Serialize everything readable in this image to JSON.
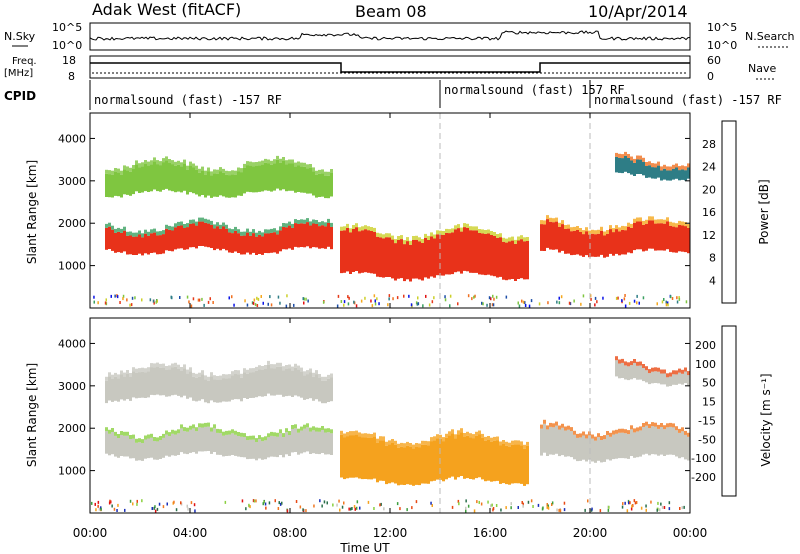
{
  "header": {
    "station": "Adak West (fitACF)",
    "beam": "Beam 08",
    "date": "10/Apr/2014"
  },
  "status_panels": {
    "nsky_label": "N.Sky",
    "nsearch_label": "N.Search",
    "freq_label": "Freq.",
    "freq_unit": "[MHz]",
    "nave_label": "Nave",
    "cpid_label": "CPID",
    "left_ticks_top": [
      "10^5",
      "10^0"
    ],
    "right_ticks_top": [
      "10^5",
      "10^0"
    ],
    "left_ticks_freq": [
      "18",
      "8"
    ],
    "right_ticks_freq": [
      "60",
      "0"
    ]
  },
  "cpid_segments": [
    {
      "label": "normalsound (fast) -157 RF",
      "start_hour": 0
    },
    {
      "label": "normalsound (fast) 157 RF",
      "start_hour": 14
    },
    {
      "label": "normalsound (fast) -157 RF",
      "start_hour": 20
    }
  ],
  "chart_data": [
    {
      "type": "heatmap",
      "panel": "power",
      "ylabel": "Slant Range [km]",
      "xlim_hours": [
        0,
        24
      ],
      "ylim": [
        0,
        4600
      ],
      "yticks": [
        1000,
        2000,
        3000,
        4000
      ],
      "colorbar": {
        "label": "Power [dB]",
        "ticks": [
          "28",
          "24",
          "20",
          "16",
          "12",
          "8",
          "4"
        ],
        "colors": [
          "#0a14e6",
          "#1d4ea8",
          "#2e7d86",
          "#3aa060",
          "#7fc640",
          "#ccd02a",
          "#f5a81e",
          "#f07020",
          "#e63a1a",
          "#e01010"
        ]
      },
      "bands": [
        {
          "t0": 0.6,
          "t1": 9.7,
          "r_lo": 1350,
          "r_hi": 1850,
          "color": "#e8321a",
          "note": "strong echo band"
        },
        {
          "t0": 0.6,
          "t1": 9.7,
          "r_lo": 2700,
          "r_hi": 3300,
          "color": "#7fc640"
        },
        {
          "t0": 10.0,
          "t1": 17.5,
          "r_lo": 750,
          "r_hi": 1700,
          "color": "#e8321a"
        },
        {
          "t0": 18.0,
          "t1": 23.9,
          "r_lo": 1300,
          "r_hi": 1900,
          "color": "#e8321a"
        },
        {
          "t0": 21.0,
          "t1": 23.9,
          "r_lo": 3100,
          "r_hi": 3400,
          "color": "#2e7d86"
        }
      ]
    },
    {
      "type": "heatmap",
      "panel": "velocity",
      "ylabel": "Slant Range [km]",
      "xlabel": "Time UT",
      "xlim_hours": [
        0,
        24
      ],
      "xticks": [
        "00:00",
        "04:00",
        "08:00",
        "12:00",
        "16:00",
        "20:00",
        "00:00"
      ],
      "ylim": [
        0,
        4600
      ],
      "yticks": [
        1000,
        2000,
        3000,
        4000
      ],
      "colorbar": {
        "label": "Velocity [m s⁻¹]",
        "ticks": [
          "200",
          "100",
          "50",
          "15",
          "-15",
          "-50",
          "-100",
          "-200"
        ],
        "colors": [
          "#1a2fb8",
          "#2a6e4a",
          "#3e9e3e",
          "#8ad040",
          "#c8c8c0",
          "#f5a21e",
          "#f07820",
          "#e84a14",
          "#e01010"
        ]
      },
      "bands": [
        {
          "t0": 0.6,
          "t1": 9.7,
          "r_lo": 1350,
          "r_hi": 1850,
          "color": "#c8c8c0"
        },
        {
          "t0": 0.6,
          "t1": 9.7,
          "r_lo": 2700,
          "r_hi": 3300,
          "color": "#c8c8c0"
        },
        {
          "t0": 10.0,
          "t1": 17.5,
          "r_lo": 750,
          "r_hi": 1700,
          "color": "#f5a21e"
        },
        {
          "t0": 18.0,
          "t1": 23.9,
          "r_lo": 1300,
          "r_hi": 1900,
          "color": "#c8c8c0"
        },
        {
          "t0": 21.0,
          "t1": 23.9,
          "r_lo": 3100,
          "r_hi": 3400,
          "color": "#c8c8c0"
        }
      ]
    }
  ]
}
